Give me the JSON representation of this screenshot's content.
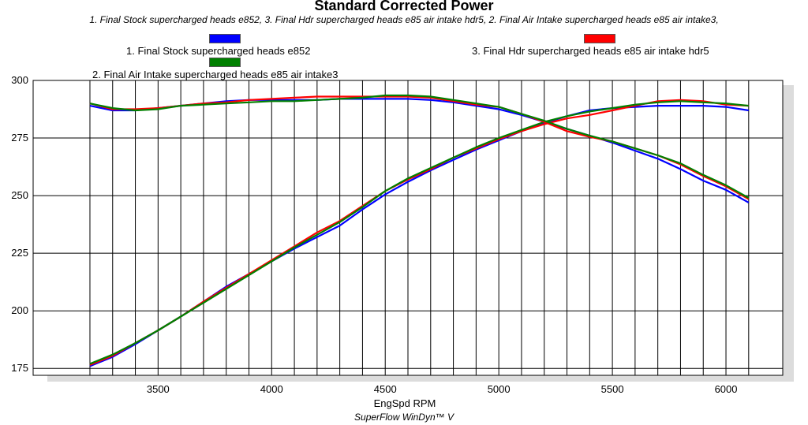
{
  "title": "Standard Corrected Power",
  "subtitle": "1. Final Stock supercharged heads e852, 3. Final Hdr supercharged heads e85 air intake hdr5, 2. Final Air Intake supercharged heads e85 air intake3,",
  "footer": "SuperFlow WinDyn™ V",
  "legend": [
    {
      "label": "1. Final Stock supercharged heads e852",
      "color": "#0000ff"
    },
    {
      "label": "3. Final Hdr supercharged heads e85 air intake hdr5",
      "color": "#ff0000"
    },
    {
      "label": "2. Final Air Intake supercharged heads e85 air intake3",
      "color": "#008000"
    }
  ],
  "chart_data": {
    "type": "line",
    "title": "Standard Corrected Power",
    "xlabel": "EngSpd RPM",
    "ylabel": "",
    "xlim": [
      2950,
      6250
    ],
    "ylim": [
      172,
      300
    ],
    "xticks": [
      3500,
      4000,
      4500,
      5000,
      5500,
      6000
    ],
    "yticks": [
      175,
      200,
      225,
      250,
      275,
      300
    ],
    "grid": true,
    "legend_position": "top",
    "series": [
      {
        "name": "1. Final Stock supercharged heads e852",
        "color": "#0000ff",
        "quantity": "power",
        "x": [
          3200,
          3300,
          3400,
          3500,
          3600,
          3700,
          3800,
          3900,
          4000,
          4100,
          4200,
          4300,
          4400,
          4500,
          4600,
          4700,
          4800,
          4900,
          5000,
          5100,
          5200,
          5300,
          5400,
          5500,
          5600,
          5700,
          5800,
          5900,
          6000,
          6100
        ],
        "y": [
          176,
          180,
          185.5,
          191.5,
          197.5,
          204,
          210.5,
          216,
          221.5,
          227,
          232,
          237,
          244,
          250.5,
          256,
          261,
          265.5,
          270,
          274,
          278,
          281.5,
          284.5,
          287,
          288,
          288.5,
          289,
          289,
          289,
          288.5,
          287
        ]
      },
      {
        "name": "3. Final Hdr supercharged heads e85 air intake hdr5",
        "color": "#ff0000",
        "quantity": "power",
        "x": [
          3200,
          3300,
          3400,
          3500,
          3600,
          3700,
          3800,
          3900,
          4000,
          4100,
          4200,
          4300,
          4400,
          4500,
          4600,
          4700,
          4800,
          4900,
          5000,
          5100,
          5200,
          5300,
          5400,
          5500,
          5600,
          5700,
          5800,
          5900,
          6000,
          6100
        ],
        "y": [
          176.5,
          180.5,
          186,
          191.5,
          197.5,
          204,
          210,
          216,
          222,
          228,
          234,
          239,
          245.5,
          252,
          257,
          261.5,
          266.5,
          270.5,
          274.5,
          278,
          281,
          283.5,
          285,
          287,
          289,
          291,
          291.5,
          291,
          289.5,
          289
        ]
      },
      {
        "name": "2. Final Air Intake supercharged heads e85 air intake3",
        "color": "#008000",
        "quantity": "power",
        "x": [
          3200,
          3300,
          3400,
          3500,
          3600,
          3700,
          3800,
          3900,
          4000,
          4100,
          4200,
          4300,
          4400,
          4500,
          4600,
          4700,
          4800,
          4900,
          5000,
          5100,
          5200,
          5300,
          5400,
          5500,
          5600,
          5700,
          5800,
          5900,
          6000,
          6100
        ],
        "y": [
          177,
          181,
          186,
          191.5,
          197.5,
          203.5,
          209.5,
          215.5,
          221.5,
          227.5,
          233,
          238.5,
          245,
          252,
          257.5,
          262,
          266.5,
          271,
          275,
          278.5,
          282,
          284.5,
          286.5,
          288,
          289.5,
          290.5,
          291,
          290.5,
          290,
          289
        ]
      },
      {
        "name": "1. Final Stock supercharged heads e852",
        "color": "#0000ff",
        "quantity": "torque",
        "x": [
          3200,
          3300,
          3400,
          3500,
          3600,
          3700,
          3800,
          3900,
          4000,
          4100,
          4200,
          4300,
          4400,
          4500,
          4600,
          4700,
          4800,
          4900,
          5000,
          5100,
          5200,
          5300,
          5400,
          5500,
          5600,
          5700,
          5800,
          5900,
          6000,
          6100
        ],
        "y": [
          289,
          287,
          287,
          288,
          289,
          290,
          291,
          291.5,
          291.5,
          291.5,
          291.5,
          292,
          292,
          292,
          292,
          291.5,
          290.5,
          289,
          287.5,
          285,
          282,
          279,
          276,
          273,
          269.5,
          266,
          261.5,
          256.5,
          252.5,
          247
        ]
      },
      {
        "name": "3. Final Hdr supercharged heads e85 air intake hdr5",
        "color": "#ff0000",
        "quantity": "torque",
        "x": [
          3200,
          3300,
          3400,
          3500,
          3600,
          3700,
          3800,
          3900,
          4000,
          4100,
          4200,
          4300,
          4400,
          4500,
          4600,
          4700,
          4800,
          4900,
          5000,
          5100,
          5200,
          5300,
          5400,
          5500,
          5600,
          5700,
          5800,
          5900,
          6000,
          6100
        ],
        "y": [
          290,
          287.5,
          287.5,
          288,
          289,
          290,
          290.5,
          291.5,
          292,
          292.5,
          293,
          293,
          293,
          293,
          293,
          292.5,
          291,
          289.5,
          288.5,
          285.5,
          282,
          278,
          275.5,
          273.5,
          270.5,
          267.5,
          263.5,
          258.5,
          254,
          248.5
        ]
      },
      {
        "name": "2. Final Air Intake supercharged heads e85 air intake3",
        "color": "#008000",
        "quantity": "torque",
        "x": [
          3200,
          3300,
          3400,
          3500,
          3600,
          3700,
          3800,
          3900,
          4000,
          4100,
          4200,
          4300,
          4400,
          4500,
          4600,
          4700,
          4800,
          4900,
          5000,
          5100,
          5200,
          5300,
          5400,
          5500,
          5600,
          5700,
          5800,
          5900,
          6000,
          6100
        ],
        "y": [
          290,
          288,
          287,
          287.5,
          289,
          289.5,
          290,
          290.5,
          291,
          291,
          291.5,
          292,
          292.5,
          293.5,
          293.5,
          293,
          291.5,
          290,
          288.5,
          285.5,
          282.5,
          279,
          276,
          273.5,
          270.5,
          267.5,
          264,
          259,
          254.5,
          249
        ]
      }
    ]
  }
}
